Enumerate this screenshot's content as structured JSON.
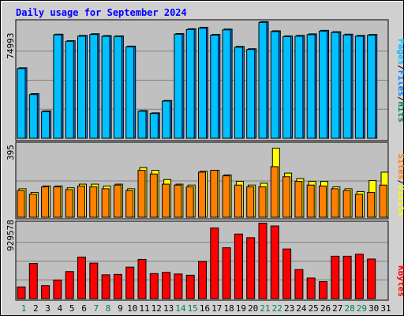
{
  "chart_data": [
    {
      "type": "bar",
      "title": "Daily usage for September 2024",
      "categories": [
        "1",
        "2",
        "3",
        "4",
        "5",
        "6",
        "7",
        "8",
        "9",
        "10",
        "11",
        "12",
        "13",
        "14",
        "15",
        "16",
        "17",
        "18",
        "19",
        "20",
        "21",
        "22",
        "23",
        "24",
        "25",
        "26",
        "27",
        "28",
        "29",
        "30",
        "31"
      ],
      "ylim": [
        0,
        74993
      ],
      "y_tick_label": "74993",
      "right_label_parts": [
        "Pages",
        "Files",
        "Hits"
      ],
      "series": [
        {
          "name": "Hits",
          "color": "#00805c",
          "values": [
            0,
            0,
            0,
            0,
            0,
            0,
            0,
            0,
            0,
            0,
            0,
            0,
            0,
            0,
            0,
            0,
            0,
            0,
            0,
            0,
            0,
            0,
            0,
            0,
            0,
            0,
            0,
            0,
            0,
            0,
            0
          ]
        },
        {
          "name": "Files",
          "color": "#0080ff",
          "values": [
            45500,
            28800,
            17700,
            67200,
            63000,
            66400,
            67500,
            66300,
            66100,
            59500,
            17900,
            16400,
            24400,
            67600,
            70700,
            71600,
            67100,
            70500,
            59300,
            57800,
            75300,
            69400,
            66100,
            66400,
            67400,
            69700,
            68800,
            67200,
            66400,
            67000,
            0
          ]
        },
        {
          "name": "Pages",
          "color": "#00c0ff",
          "values": [
            45000,
            28200,
            17200,
            66800,
            62600,
            65900,
            67000,
            65800,
            65700,
            59100,
            17500,
            16000,
            24000,
            67200,
            70200,
            71100,
            66600,
            70000,
            58800,
            57300,
            74800,
            68900,
            65600,
            65900,
            66900,
            69200,
            68300,
            66700,
            65900,
            66600,
            0
          ]
        }
      ]
    },
    {
      "type": "bar",
      "ylim": [
        0,
        395
      ],
      "y_tick_label": "395",
      "right_label_parts": [
        "Sites",
        "Visits"
      ],
      "series": [
        {
          "name": "Visits",
          "color": "#ffff00",
          "values": [
            155,
            135,
            170,
            170,
            160,
            180,
            180,
            170,
            180,
            155,
            270,
            255,
            205,
            180,
            175,
            250,
            255,
            230,
            195,
            175,
            185,
            375,
            240,
            210,
            195,
            195,
            165,
            155,
            140,
            200,
            245
          ]
        },
        {
          "name": "Sites",
          "color": "#ff8000",
          "values": [
            145,
            125,
            165,
            165,
            150,
            170,
            165,
            155,
            175,
            145,
            255,
            235,
            180,
            175,
            165,
            245,
            255,
            225,
            175,
            165,
            165,
            275,
            220,
            195,
            175,
            170,
            155,
            145,
            125,
            135,
            175
          ]
        }
      ]
    },
    {
      "type": "bar",
      "ylim": [
        0,
        929578
      ],
      "y_tick_label": "929578",
      "right_label_parts": [
        "KBytes"
      ],
      "series": [
        {
          "name": "KBytes",
          "color": "#ff0000",
          "values": [
            145000,
            435000,
            160000,
            230000,
            335000,
            515000,
            440000,
            295000,
            300000,
            390000,
            485000,
            310000,
            325000,
            305000,
            290000,
            460000,
            875000,
            630000,
            800000,
            755000,
            935000,
            900000,
            615000,
            360000,
            255000,
            210000,
            525000,
            525000,
            550000,
            490000,
            0
          ]
        }
      ]
    }
  ],
  "weekend_days": [
    1,
    7,
    8,
    14,
    15,
    21,
    22,
    28,
    29
  ],
  "colors": {
    "title_text": "#0000ff",
    "panel_bg": "#c0c0c0",
    "frame_bg": "#d0d0d0",
    "day_weekday": "#000000",
    "day_weekend": "#00805c",
    "bar_border": "#000000",
    "grid": "#808080"
  }
}
